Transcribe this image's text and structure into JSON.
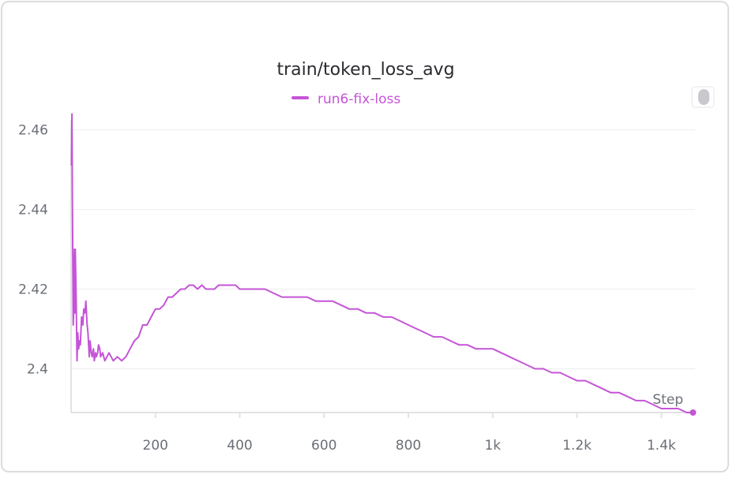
{
  "chart_data": {
    "type": "line",
    "title": "train/token_loss_avg",
    "xlabel": "Step",
    "ylabel": "",
    "xlim": [
      0,
      1480
    ],
    "ylim": [
      2.389,
      2.4625
    ],
    "x_ticks": [
      200,
      400,
      600,
      800,
      1000,
      1200,
      1400
    ],
    "x_tick_labels": [
      "200",
      "400",
      "600",
      "800",
      "1k",
      "1.2k",
      "1.4k"
    ],
    "y_ticks": [
      2.4,
      2.42,
      2.44,
      2.46
    ],
    "y_tick_labels": [
      "2.4",
      "2.42",
      "2.44",
      "2.46"
    ],
    "grid": true,
    "legend_position": "top-center",
    "series": [
      {
        "name": "run6-fix-loss",
        "color": "#c455d6",
        "x": [
          1,
          2,
          3,
          4,
          5,
          6,
          7,
          8,
          9,
          10,
          12,
          14,
          16,
          18,
          20,
          22,
          25,
          28,
          30,
          33,
          35,
          38,
          40,
          43,
          45,
          48,
          50,
          53,
          55,
          58,
          60,
          63,
          65,
          68,
          70,
          75,
          80,
          85,
          90,
          95,
          100,
          110,
          120,
          130,
          140,
          150,
          160,
          170,
          180,
          190,
          200,
          210,
          220,
          230,
          240,
          250,
          260,
          270,
          280,
          290,
          300,
          310,
          320,
          330,
          340,
          350,
          360,
          370,
          380,
          390,
          400,
          420,
          440,
          460,
          480,
          500,
          520,
          540,
          560,
          580,
          600,
          620,
          640,
          660,
          680,
          700,
          720,
          740,
          760,
          780,
          800,
          820,
          840,
          860,
          880,
          900,
          920,
          940,
          960,
          980,
          1000,
          1020,
          1040,
          1060,
          1080,
          1100,
          1120,
          1140,
          1160,
          1180,
          1200,
          1220,
          1240,
          1260,
          1280,
          1300,
          1320,
          1340,
          1360,
          1380,
          1400,
          1420,
          1440,
          1460,
          1475
        ],
        "y": [
          2.451,
          2.464,
          2.443,
          2.43,
          2.411,
          2.414,
          2.422,
          2.43,
          2.414,
          2.43,
          2.418,
          2.402,
          2.409,
          2.405,
          2.407,
          2.406,
          2.413,
          2.411,
          2.415,
          2.414,
          2.417,
          2.411,
          2.409,
          2.403,
          2.407,
          2.404,
          2.403,
          2.405,
          2.402,
          2.404,
          2.403,
          2.404,
          2.406,
          2.405,
          2.403,
          2.404,
          2.402,
          2.403,
          2.404,
          2.403,
          2.402,
          2.403,
          2.402,
          2.403,
          2.405,
          2.407,
          2.408,
          2.411,
          2.411,
          2.413,
          2.415,
          2.415,
          2.416,
          2.418,
          2.418,
          2.419,
          2.42,
          2.42,
          2.421,
          2.421,
          2.42,
          2.421,
          2.42,
          2.42,
          2.42,
          2.421,
          2.421,
          2.421,
          2.421,
          2.421,
          2.42,
          2.42,
          2.42,
          2.42,
          2.419,
          2.418,
          2.418,
          2.418,
          2.418,
          2.417,
          2.417,
          2.417,
          2.416,
          2.415,
          2.415,
          2.414,
          2.414,
          2.413,
          2.413,
          2.412,
          2.411,
          2.41,
          2.409,
          2.408,
          2.408,
          2.407,
          2.406,
          2.406,
          2.405,
          2.405,
          2.405,
          2.404,
          2.403,
          2.402,
          2.401,
          2.4,
          2.4,
          2.399,
          2.399,
          2.398,
          2.397,
          2.397,
          2.396,
          2.395,
          2.394,
          2.394,
          2.393,
          2.392,
          2.392,
          2.391,
          2.39,
          2.39,
          2.39,
          2.389,
          2.389
        ]
      }
    ]
  }
}
